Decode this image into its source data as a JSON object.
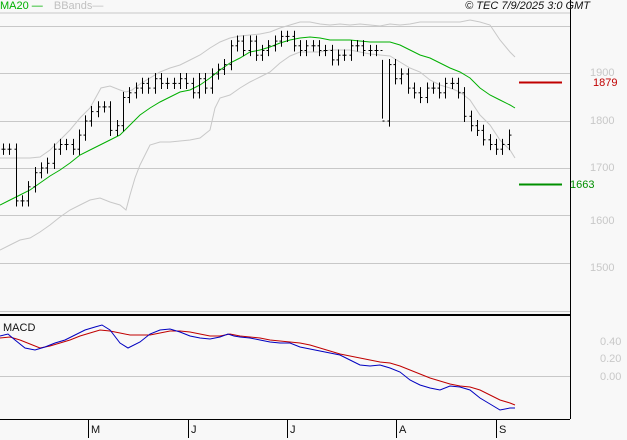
{
  "header": {
    "legend_ma": "MA20",
    "legend_bbands": "BBands",
    "copyright": "© TEC 7/9/2025 3:0 GMT"
  },
  "colors": {
    "ma20": "#00b000",
    "bbands": "#c8c8c8",
    "bars": "#000000",
    "macd": "#0000c0",
    "signal": "#c00000",
    "resistance": "#c00000",
    "support": "#009000",
    "grid": "#c8c8c8"
  },
  "levels": {
    "resistance": {
      "label": "1879",
      "value": 1879
    },
    "support": {
      "label": "1663",
      "value": 1663
    }
  },
  "y_axis": {
    "ticks": [
      {
        "label": "1900",
        "value": 1900
      },
      {
        "label": "1800",
        "value": 1800
      },
      {
        "label": "1700",
        "value": 1700
      },
      {
        "label": "1600",
        "value": 1600
      },
      {
        "label": "1500",
        "value": 1500
      }
    ]
  },
  "macd_panel": {
    "label": "MACD",
    "ticks": [
      {
        "label": "0.40",
        "value": 0.4
      },
      {
        "label": "0.20",
        "value": 0.2
      },
      {
        "label": "0.00",
        "value": 0.0
      }
    ]
  },
  "x_axis": {
    "months": [
      {
        "label": "M",
        "x": 90
      },
      {
        "label": "J",
        "x": 190
      },
      {
        "label": "J",
        "x": 288
      },
      {
        "label": "A",
        "x": 397
      },
      {
        "label": "S",
        "x": 497
      }
    ]
  },
  "chart_data": {
    "type": "ohlc",
    "title": "",
    "xlabel": "",
    "ylabel": "",
    "ylim": [
      1410,
      2010
    ],
    "indicators": [
      "MA20",
      "BBands",
      "MACD"
    ],
    "series": [
      {
        "name": "Price (approx close)",
        "values": [
          1740,
          1740,
          1630,
          1630,
          1660,
          1690,
          1700,
          1710,
          1740,
          1750,
          1750,
          1740,
          1770,
          1800,
          1820,
          1830,
          1830,
          1780,
          1790,
          1850,
          1860,
          1870,
          1880,
          1870,
          1890,
          1880,
          1880,
          1880,
          1890,
          1880,
          1860,
          1890,
          1870,
          1900,
          1910,
          1920,
          1960,
          1970,
          1950,
          1970,
          1940,
          1950,
          1960,
          1970,
          1980,
          1980,
          1960,
          1950,
          1960,
          1960,
          1950,
          1950,
          1930,
          1940,
          1940,
          1960,
          1960,
          1950,
          1950,
          1950,
          1800,
          1920,
          1890,
          1900,
          1870,
          1860,
          1850,
          1870,
          1870,
          1860,
          1880,
          1880,
          1860,
          1810,
          1790,
          1780,
          1760,
          1750,
          1740,
          1750,
          1770
        ]
      },
      {
        "name": "MA20",
        "values": [
          1660,
          1670,
          1680,
          1690,
          1700,
          1720,
          1740,
          1760,
          1780,
          1800,
          1820,
          1830,
          1840,
          1850,
          1870,
          1890,
          1910,
          1930,
          1940,
          1950,
          1950,
          1940,
          1930,
          1920,
          1890,
          1860,
          1840,
          1820
        ]
      },
      {
        "name": "Resistance",
        "values": [
          1879
        ]
      },
      {
        "name": "Support",
        "values": [
          1663
        ]
      }
    ],
    "macd": {
      "ylim": [
        -0.1,
        0.6
      ],
      "series": [
        {
          "name": "MACD",
          "values": [
            0.42,
            0.3,
            0.28,
            0.34,
            0.4,
            0.45,
            0.5,
            0.46,
            0.44,
            0.42,
            0.36,
            0.38,
            0.4,
            0.34,
            0.3,
            0.26,
            0.2,
            0.14,
            0.1,
            0.04,
            0.02,
            0.0,
            -0.04
          ]
        },
        {
          "name": "Signal",
          "values": [
            0.4,
            0.34,
            0.34,
            0.38,
            0.42,
            0.46,
            0.46,
            0.43,
            0.41,
            0.4,
            0.38,
            0.38,
            0.38,
            0.35,
            0.32,
            0.28,
            0.24,
            0.2,
            0.16,
            0.12,
            0.08,
            0.04,
            0.0
          ]
        }
      ]
    }
  }
}
